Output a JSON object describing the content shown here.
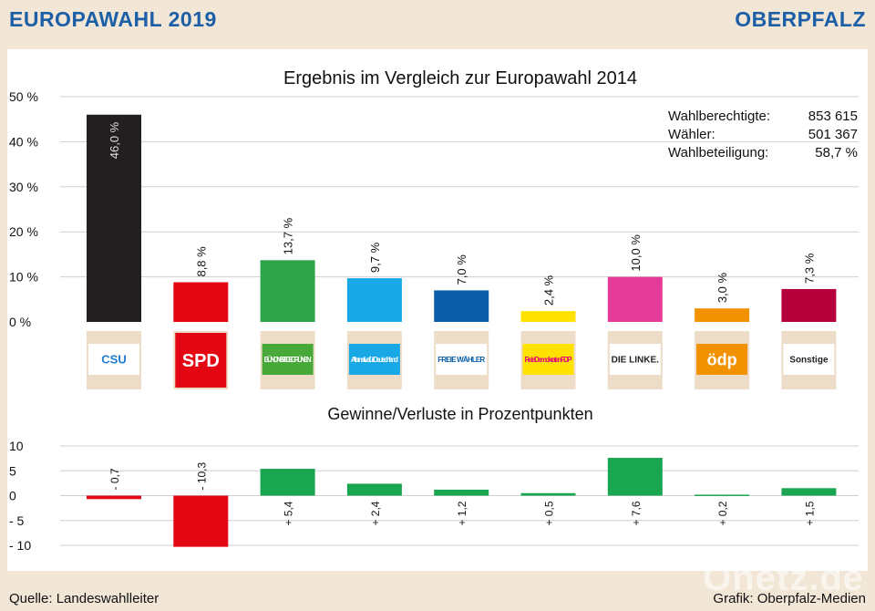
{
  "header": {
    "left": "EUROPAWAHL 2019",
    "right": "OBERPFALZ"
  },
  "footer": {
    "source": "Quelle: Landeswahlleiter",
    "credit": "Grafik: Oberpfalz-Medien"
  },
  "watermark": "Onetz.de",
  "stats": [
    {
      "label": "Wahlberechtigte:",
      "value": "853 615"
    },
    {
      "label": "Wähler:",
      "value": "501 367"
    },
    {
      "label": "Wahlbeteiligung:",
      "value": "58,7 %"
    }
  ],
  "chart_data": [
    {
      "type": "bar",
      "title": "Ergebnis im Vergleich zur Europawahl 2014",
      "categories": [
        "CSU",
        "SPD",
        "Bündnis 90 Die Grünen",
        "Alternative für Deutschland",
        "Freie Wähler",
        "Freie Demokraten FDP",
        "Die Linke.",
        "ödp",
        "Sonstige"
      ],
      "values": [
        46.0,
        8.8,
        13.7,
        9.7,
        7.0,
        2.4,
        10.0,
        3.0,
        7.3
      ],
      "value_labels": [
        "46,0 %",
        "8,8 %",
        "13,7 %",
        "9,7 %",
        "7,0 %",
        "2,4 %",
        "10,0 %",
        "3,0 %",
        "7,3 %"
      ],
      "colors": [
        "#231f20",
        "#e30613",
        "#2ea34a",
        "#18a8e6",
        "#0b5ea8",
        "#ffe200",
        "#e63a98",
        "#f39200",
        "#b5003c"
      ],
      "yticks": [
        "50 %",
        "40 %",
        "30 %",
        "20 %",
        "10 %",
        "0 %"
      ],
      "ylim": [
        0,
        50
      ],
      "grid": true
    },
    {
      "type": "bar",
      "title": "Gewinne/Verluste in Prozentpunkten",
      "categories": [
        "CSU",
        "SPD",
        "Bündnis 90 Die Grünen",
        "Alternative für Deutschland",
        "Freie Wähler",
        "Freie Demokraten FDP",
        "Die Linke.",
        "ödp",
        "Sonstige"
      ],
      "values": [
        -0.7,
        -10.3,
        5.4,
        2.4,
        1.2,
        0.5,
        7.6,
        0.2,
        1.5
      ],
      "value_labels": [
        "- 0,7",
        "- 10,3",
        "+ 5,4",
        "+ 2,4",
        "+ 1,2",
        "+ 0,5",
        "+ 7,6",
        "+ 0,2",
        "+ 1,5"
      ],
      "colors": [
        "#e30613",
        "#e30613",
        "#1aa650",
        "#1aa650",
        "#1aa650",
        "#1aa650",
        "#1aa650",
        "#1aa650",
        "#1aa650"
      ],
      "yticks": [
        "10",
        "5",
        "0",
        "- 5",
        "- 10"
      ],
      "ylim": [
        -10,
        10
      ],
      "grid": true
    }
  ],
  "logos": [
    {
      "name": "csu",
      "text": "CSU",
      "bg": "#ffffff",
      "fg": "#1d7bd0"
    },
    {
      "name": "spd",
      "text": "SPD",
      "bg": "#e30613",
      "fg": "#ffffff"
    },
    {
      "name": "gruene",
      "text": "BÜNDNIS 90 DIE GRÜNEN",
      "bg": "#46a938",
      "fg": "#ffffff"
    },
    {
      "name": "afd",
      "text": "Alternative für Deutschland",
      "bg": "#18a8e6",
      "fg": "#ffffff"
    },
    {
      "name": "freie-waehler",
      "text": "FREIE WÄHLER",
      "bg": "#ffffff",
      "fg": "#0b5ea8"
    },
    {
      "name": "fdp",
      "text": "Freie Demokraten FDP",
      "bg": "#ffe200",
      "fg": "#e5007d"
    },
    {
      "name": "linke",
      "text": "DIE LINKE.",
      "bg": "#ffffff",
      "fg": "#222222"
    },
    {
      "name": "oedp",
      "text": "ödp",
      "bg": "#f39200",
      "fg": "#ffffff"
    },
    {
      "name": "sonstige",
      "text": "Sonstige",
      "bg": "#ffffff",
      "fg": "#222222"
    }
  ]
}
